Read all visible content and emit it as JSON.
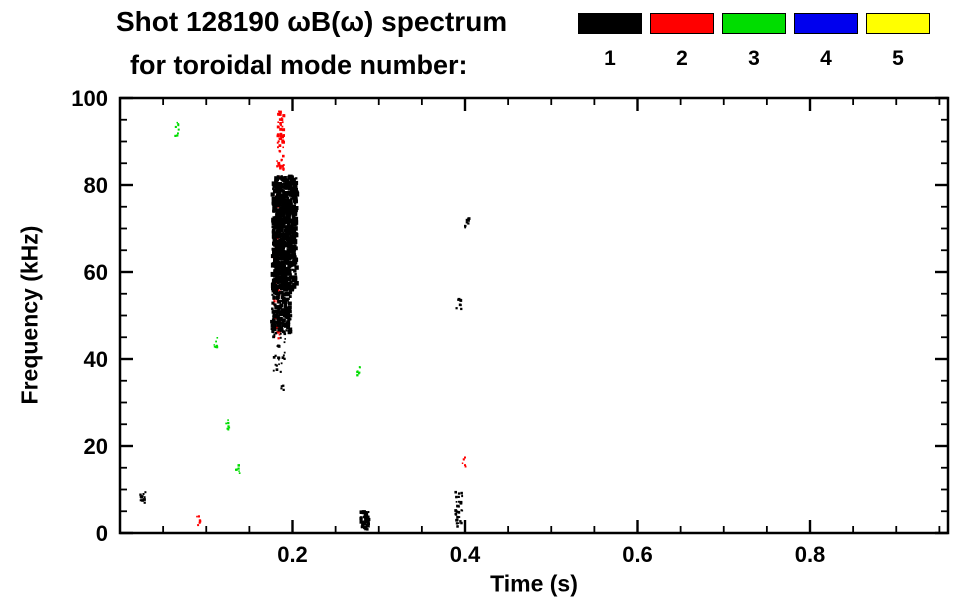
{
  "header": {
    "title": "Shot 128190 ωB(ω) spectrum",
    "subtitle": "for toroidal mode number:"
  },
  "legend": {
    "items": [
      {
        "label": "1",
        "color": "#000000"
      },
      {
        "label": "2",
        "color": "#ff0000"
      },
      {
        "label": "3",
        "color": "#00dd00"
      },
      {
        "label": "4",
        "color": "#0000ee"
      },
      {
        "label": "5",
        "color": "#ffff00"
      }
    ]
  },
  "chart_data": {
    "type": "scatter",
    "title": "Shot 128190 ωB(ω) spectrum for toroidal mode number: 1 2 3 4 5",
    "xlabel": "Time (s)",
    "ylabel": "Frequency (kHz)",
    "xlim": [
      0,
      0.96
    ],
    "ylim": [
      0,
      100
    ],
    "xticks": [
      0.2,
      0.4,
      0.6,
      0.8
    ],
    "yticks": [
      0,
      20,
      40,
      60,
      80,
      100
    ],
    "x_minor_step": 0.05,
    "y_minor_step": 5,
    "grid": false,
    "legend_position": "top-right",
    "series": [
      {
        "name": "mode 1",
        "mode": 1,
        "color": "#000000",
        "clusters": [
          {
            "t_range": [
              0.177,
              0.205
            ],
            "f_range": [
              56,
              82
            ],
            "n": 650,
            "size_range": [
              2,
              5
            ],
            "note": "main dense burst"
          },
          {
            "t_range": [
              0.176,
              0.198
            ],
            "f_range": [
              46,
              57
            ],
            "n": 180,
            "size_range": [
              2,
              4
            ],
            "note": "lower part of burst"
          },
          {
            "t_range": [
              0.178,
              0.192
            ],
            "f_range": [
              37,
              46
            ],
            "n": 28,
            "size_range": [
              1.5,
              3
            ],
            "note": "sparse tail below burst"
          },
          {
            "t_range": [
              0.186,
              0.19
            ],
            "f_range": [
              32,
              34
            ],
            "n": 5,
            "size_range": [
              1.5,
              2.5
            ]
          },
          {
            "t_range": [
              0.023,
              0.03
            ],
            "f_range": [
              6.5,
              9.5
            ],
            "n": 14,
            "size_range": [
              1.5,
              3
            ]
          },
          {
            "t_range": [
              0.279,
              0.289
            ],
            "f_range": [
              0.8,
              5
            ],
            "n": 45,
            "size_range": [
              2,
              4
            ]
          },
          {
            "t_range": [
              0.389,
              0.397
            ],
            "f_range": [
              1.5,
              9.5
            ],
            "n": 30,
            "size_range": [
              1.5,
              3
            ]
          },
          {
            "t_range": [
              0.39,
              0.396
            ],
            "f_range": [
              51.5,
              54
            ],
            "n": 8,
            "size_range": [
              1.5,
              3
            ]
          },
          {
            "t_range": [
              0.399,
              0.405
            ],
            "f_range": [
              69.5,
              72.5
            ],
            "n": 9,
            "size_range": [
              1.5,
              3
            ]
          }
        ]
      },
      {
        "name": "mode 2",
        "mode": 2,
        "color": "#ff0000",
        "clusters": [
          {
            "t_range": [
              0.182,
              0.19
            ],
            "f_range": [
              82,
              97
            ],
            "n": 60,
            "size_range": [
              1.5,
              3
            ],
            "note": "thin streak above mode-1 burst"
          },
          {
            "t_range": [
              0.178,
              0.186
            ],
            "f_range": [
              44,
              82
            ],
            "n": 70,
            "size_range": [
              1.5,
              3
            ],
            "note": "streak partly hidden by mode-1 burst"
          },
          {
            "t_range": [
              0.088,
              0.093
            ],
            "f_range": [
              1.5,
              4
            ],
            "n": 7,
            "size_range": [
              1.5,
              2.5
            ]
          },
          {
            "t_range": [
              0.395,
              0.401
            ],
            "f_range": [
              15,
              17.5
            ],
            "n": 7,
            "size_range": [
              1.5,
              2.5
            ]
          }
        ]
      },
      {
        "name": "mode 3",
        "mode": 3,
        "color": "#00dd00",
        "clusters": [
          {
            "t_range": [
              0.064,
              0.069
            ],
            "f_range": [
              91,
              95
            ],
            "n": 8,
            "size_range": [
              1.5,
              2.5
            ]
          },
          {
            "t_range": [
              0.108,
              0.113
            ],
            "f_range": [
              42,
              45
            ],
            "n": 7,
            "size_range": [
              1.5,
              2.5
            ]
          },
          {
            "t_range": [
              0.123,
              0.128
            ],
            "f_range": [
              23.5,
              26
            ],
            "n": 7,
            "size_range": [
              1.5,
              2.5
            ]
          },
          {
            "t_range": [
              0.134,
              0.139
            ],
            "f_range": [
              13.5,
              16
            ],
            "n": 6,
            "size_range": [
              1.5,
              2.5
            ]
          },
          {
            "t_range": [
              0.273,
              0.279
            ],
            "f_range": [
              36,
              38.5
            ],
            "n": 7,
            "size_range": [
              1.5,
              2.5
            ]
          }
        ]
      },
      {
        "name": "mode 4",
        "mode": 4,
        "color": "#0000ee",
        "clusters": []
      },
      {
        "name": "mode 5",
        "mode": 5,
        "color": "#ffff00",
        "clusters": []
      }
    ]
  }
}
